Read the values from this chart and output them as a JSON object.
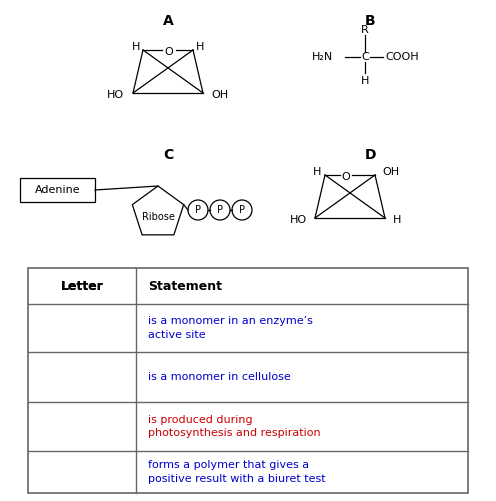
{
  "bg_color": "#ffffff",
  "label_A": "A",
  "label_B": "B",
  "label_C": "C",
  "label_D": "D",
  "table_header": [
    "Letter",
    "Statement"
  ],
  "table_rows": [
    "is a monomer in an enzyme’s\nactive site",
    "is a monomer in cellulose",
    "is produced during\nphotosynthesis and respiration",
    "forms a polymer that gives a\npositive result with a biuret test"
  ],
  "photosyn_color": "#cc0000",
  "statement_color": "#0000cc",
  "normal_color": "#000000",
  "figw": 4.96,
  "figh": 5.01,
  "dpi": 100
}
